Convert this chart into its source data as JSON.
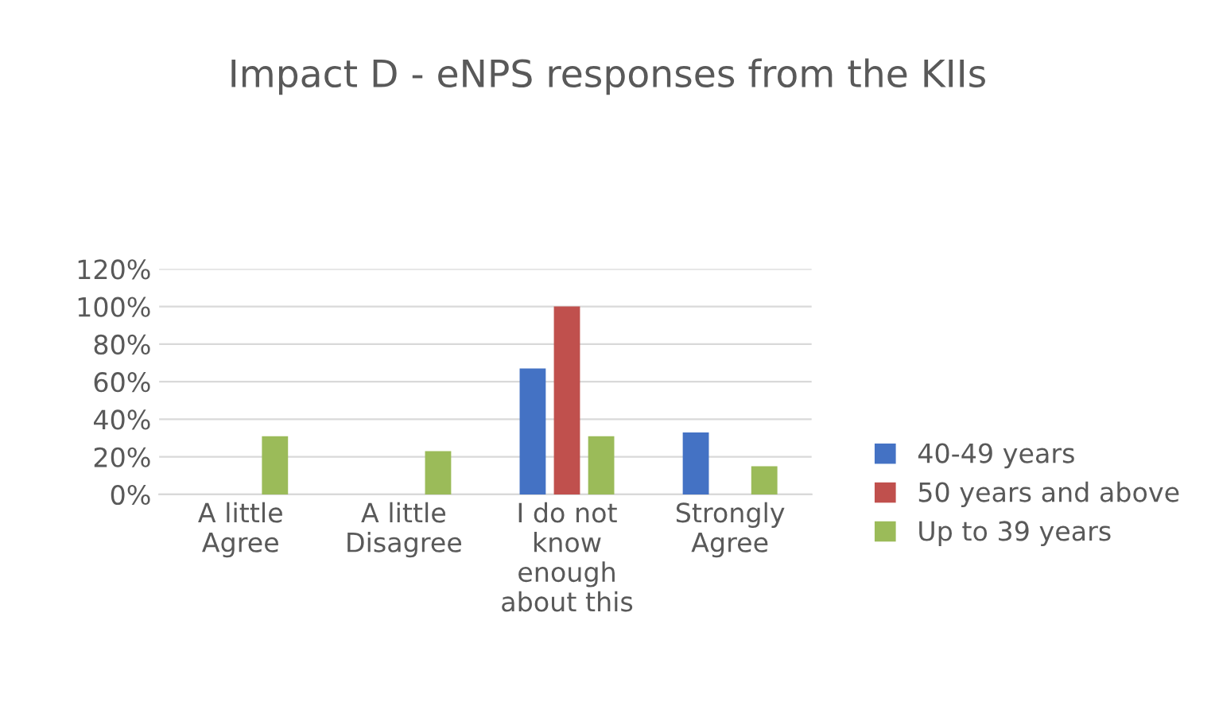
{
  "chart_data": {
    "type": "bar",
    "title": "Impact D - eNPS responses from the KIIs",
    "categories": [
      "A little\nAgree",
      "A little\nDisagree",
      "I do not\nknow\nenough\nabout this",
      "Strongly\nAgree"
    ],
    "series": [
      {
        "name": "40-49 years",
        "color": "#4472c4",
        "values": [
          null,
          null,
          67,
          33
        ]
      },
      {
        "name": "50 years and above",
        "color": "#c0504d",
        "values": [
          null,
          null,
          100,
          null
        ]
      },
      {
        "name": "Up to 39 years",
        "color": "#9bbb59",
        "values": [
          31,
          23,
          31,
          15
        ]
      }
    ],
    "ylim": [
      0,
      120
    ],
    "yticks": [
      {
        "value": 0,
        "label": "0%"
      },
      {
        "value": 20,
        "label": "20%"
      },
      {
        "value": 40,
        "label": "40%"
      },
      {
        "value": 60,
        "label": "60%"
      },
      {
        "value": 80,
        "label": "80%"
      },
      {
        "value": 100,
        "label": "100%"
      },
      {
        "value": 120,
        "label": "120%"
      }
    ],
    "grid": "y",
    "legend": "right"
  }
}
